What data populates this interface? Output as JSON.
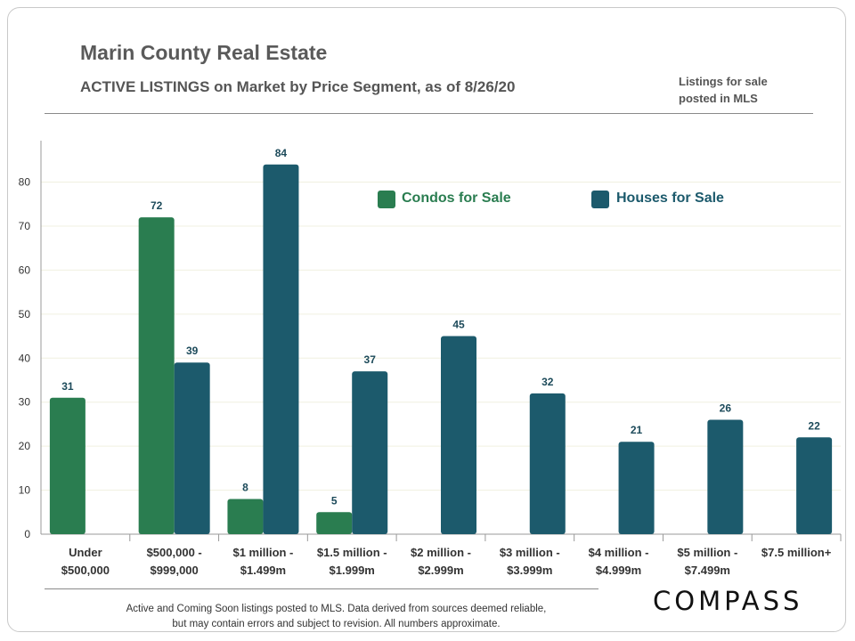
{
  "header": {
    "title": "Marin County Real Estate",
    "subtitle": "ACTIVE LISTINGS on Market  by Price Segment, as of 8/26/20",
    "note_line1": "Listings for sale",
    "note_line2": "posted in MLS"
  },
  "footer": {
    "line1": "Active and Coming Soon listings posted to MLS. Data derived from sources deemed reliable,",
    "line2": "but may contain errors and subject to revision. All numbers approximate."
  },
  "logo_text": "COMPASS",
  "chart_data": {
    "type": "bar",
    "title": "ACTIVE LISTINGS on Market  by Price Segment, as of 8/26/20",
    "xlabel": "",
    "ylabel": "",
    "ylim": [
      0,
      88
    ],
    "yticks": [
      0,
      10,
      20,
      30,
      40,
      50,
      60,
      70,
      80
    ],
    "grid": true,
    "legend_position": "top-center",
    "categories": [
      [
        "Under",
        "$500,000"
      ],
      [
        "$500,000 -",
        "$999,000"
      ],
      [
        "$1 million -",
        "$1.499m"
      ],
      [
        "$1.5 million -",
        "$1.999m"
      ],
      [
        "$2 million -",
        "$2.999m"
      ],
      [
        "$3 million -",
        "$3.999m"
      ],
      [
        "$4 million -",
        "$4.999m"
      ],
      [
        "$5 million -",
        "$7.499m"
      ],
      [
        "$7.5 million+"
      ]
    ],
    "series": [
      {
        "name": "Condos for Sale",
        "color": "#2a7d50",
        "values": [
          31,
          72,
          8,
          5,
          null,
          null,
          null,
          null,
          null
        ]
      },
      {
        "name": "Houses for Sale",
        "color": "#1c5a6c",
        "values": [
          null,
          39,
          84,
          37,
          45,
          32,
          21,
          26,
          22
        ]
      }
    ]
  }
}
